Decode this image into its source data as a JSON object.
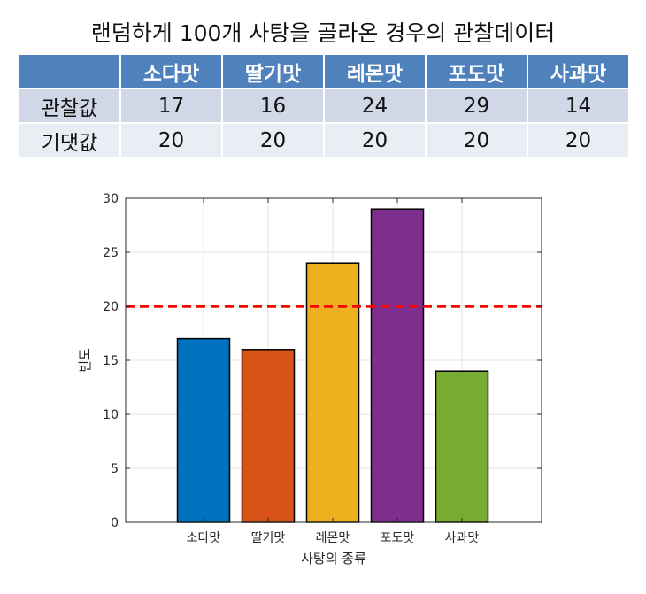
{
  "title": "랜덤하게 100개 사탕을 골라온 경우의 관찰데이터",
  "table": {
    "columns": [
      "소다맛",
      "딸기맛",
      "레몬맛",
      "포도맛",
      "사과맛"
    ],
    "rows": [
      {
        "label": "관찰값",
        "values": [
          "17",
          "16",
          "24",
          "29",
          "14"
        ]
      },
      {
        "label": "기댓값",
        "values": [
          "20",
          "20",
          "20",
          "20",
          "20"
        ]
      }
    ]
  },
  "chart_data": {
    "type": "bar",
    "categories": [
      "소다맛",
      "딸기맛",
      "레몬맛",
      "포도맛",
      "사과맛"
    ],
    "values": [
      17,
      16,
      24,
      29,
      14
    ],
    "colors": [
      "#0072bd",
      "#d95319",
      "#edb120",
      "#7e2f8e",
      "#77ac30"
    ],
    "reference_line": {
      "value": 20,
      "color": "#ff0000",
      "style": "dashed"
    },
    "xlabel": "사탕의 종류",
    "ylabel": "빈도",
    "ylim": [
      0,
      30
    ],
    "yticks": [
      0,
      5,
      10,
      15,
      20,
      25,
      30
    ],
    "grid": true
  }
}
